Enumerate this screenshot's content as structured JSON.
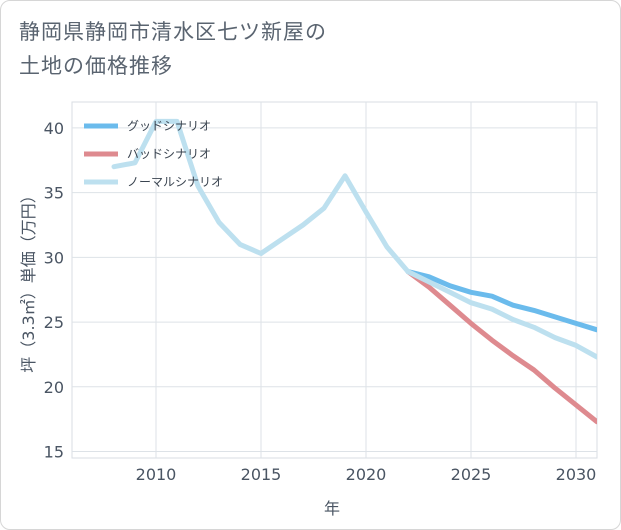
{
  "title": {
    "line1": "静岡県静岡市清水区七ツ新屋の",
    "line2": "土地の価格推移"
  },
  "chart_data": {
    "type": "line",
    "xlabel": "年",
    "ylabel": "坪（3.3㎡）単価（万円）",
    "xlim": [
      2006,
      2031
    ],
    "ylim": [
      14.5,
      42
    ],
    "x_ticks": [
      2010,
      2015,
      2020,
      2025,
      2030
    ],
    "y_ticks": [
      15,
      20,
      25,
      30,
      35,
      40
    ],
    "x_tick_labels": [
      "2010",
      "2015",
      "2020",
      "2025",
      "2030"
    ],
    "y_tick_labels": [
      "15",
      "20",
      "25",
      "30",
      "35",
      "40"
    ],
    "grid": true,
    "legend_position": "top-left",
    "series": [
      {
        "name": "グッドシナリオ",
        "color": "#6bbbec",
        "x": [
          2022,
          2023,
          2024,
          2025,
          2026,
          2027,
          2028,
          2029,
          2030,
          2031
        ],
        "y": [
          28.9,
          28.5,
          27.8,
          27.3,
          27.0,
          26.3,
          25.9,
          25.4,
          24.9,
          24.4
        ]
      },
      {
        "name": "バッドシナリオ",
        "color": "#de8a8f",
        "x": [
          2022,
          2023,
          2024,
          2025,
          2026,
          2027,
          2028,
          2029,
          2030,
          2031
        ],
        "y": [
          28.9,
          27.7,
          26.3,
          24.9,
          23.6,
          22.4,
          21.3,
          19.9,
          18.6,
          17.3
        ]
      },
      {
        "name": "ノーマルシナリオ",
        "color": "#bde0ef",
        "x": [
          2008,
          2009,
          2010,
          2011,
          2012,
          2013,
          2014,
          2015,
          2016,
          2017,
          2018,
          2019,
          2020,
          2021,
          2022,
          2023,
          2024,
          2025,
          2026,
          2027,
          2028,
          2029,
          2030,
          2031
        ],
        "y": [
          37.0,
          37.3,
          40.5,
          40.5,
          35.5,
          32.7,
          31.0,
          30.3,
          31.4,
          32.5,
          33.8,
          36.3,
          33.5,
          30.8,
          28.9,
          28.1,
          27.3,
          26.5,
          26.0,
          25.2,
          24.6,
          23.8,
          23.2,
          22.3
        ]
      }
    ]
  }
}
